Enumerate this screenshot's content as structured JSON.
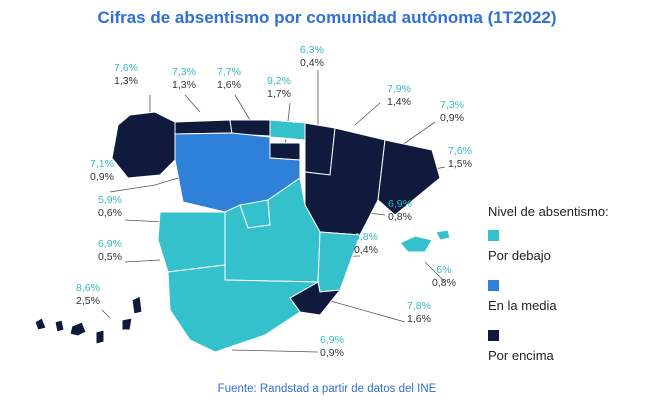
{
  "title": "Cifras de absentismo por comunidad autónoma (1T2022)",
  "source": "Fuente: Randstad a partir de datos del INE",
  "colors": {
    "debajo": "#35c1cc",
    "media": "#2e80d8",
    "encima": "#0f1a3d",
    "pct_text": "#35b9c6",
    "title": "#2f6fd6"
  },
  "legend": {
    "title": "Nivel de absentismo:",
    "items": [
      {
        "key": "debajo",
        "label": "Por debajo"
      },
      {
        "key": "media",
        "label": "En la media"
      },
      {
        "key": "encima",
        "label": "Por encima"
      }
    ]
  },
  "regions": [
    {
      "pct": "7,6%",
      "val": "1,3%",
      "level": "encima"
    },
    {
      "pct": "7,3%",
      "val": "1,3%",
      "level": "encima"
    },
    {
      "pct": "7,7%",
      "val": "1,6%",
      "level": "encima"
    },
    {
      "pct": "9,2%",
      "val": "1,7%",
      "level": "encima"
    },
    {
      "pct": "6,3%",
      "val": "0,4%",
      "level": "debajo"
    },
    {
      "pct": "7,9%",
      "val": "1,4%",
      "level": "encima"
    },
    {
      "pct": "7,3%",
      "val": "0,9%",
      "level": "encima"
    },
    {
      "pct": "7,6%",
      "val": "1,5%",
      "level": "encima"
    },
    {
      "pct": "7,1%",
      "val": "0,9%",
      "level": "media"
    },
    {
      "pct": "5,9%",
      "val": "0,6%",
      "level": "debajo"
    },
    {
      "pct": "6,9%",
      "val": "0,8%",
      "level": "debajo"
    },
    {
      "pct": "6,8%",
      "val": "0,4%",
      "level": "debajo"
    },
    {
      "pct": "6,9%",
      "val": "0,5%",
      "level": "debajo"
    },
    {
      "pct": "6%",
      "val": "0,8%",
      "level": "debajo"
    },
    {
      "pct": "8,6%",
      "val": "2,5%",
      "level": "encima"
    },
    {
      "pct": "7,8%",
      "val": "1,6%",
      "level": "encima"
    },
    {
      "pct": "6,9%",
      "val": "0,9%",
      "level": "debajo"
    }
  ]
}
